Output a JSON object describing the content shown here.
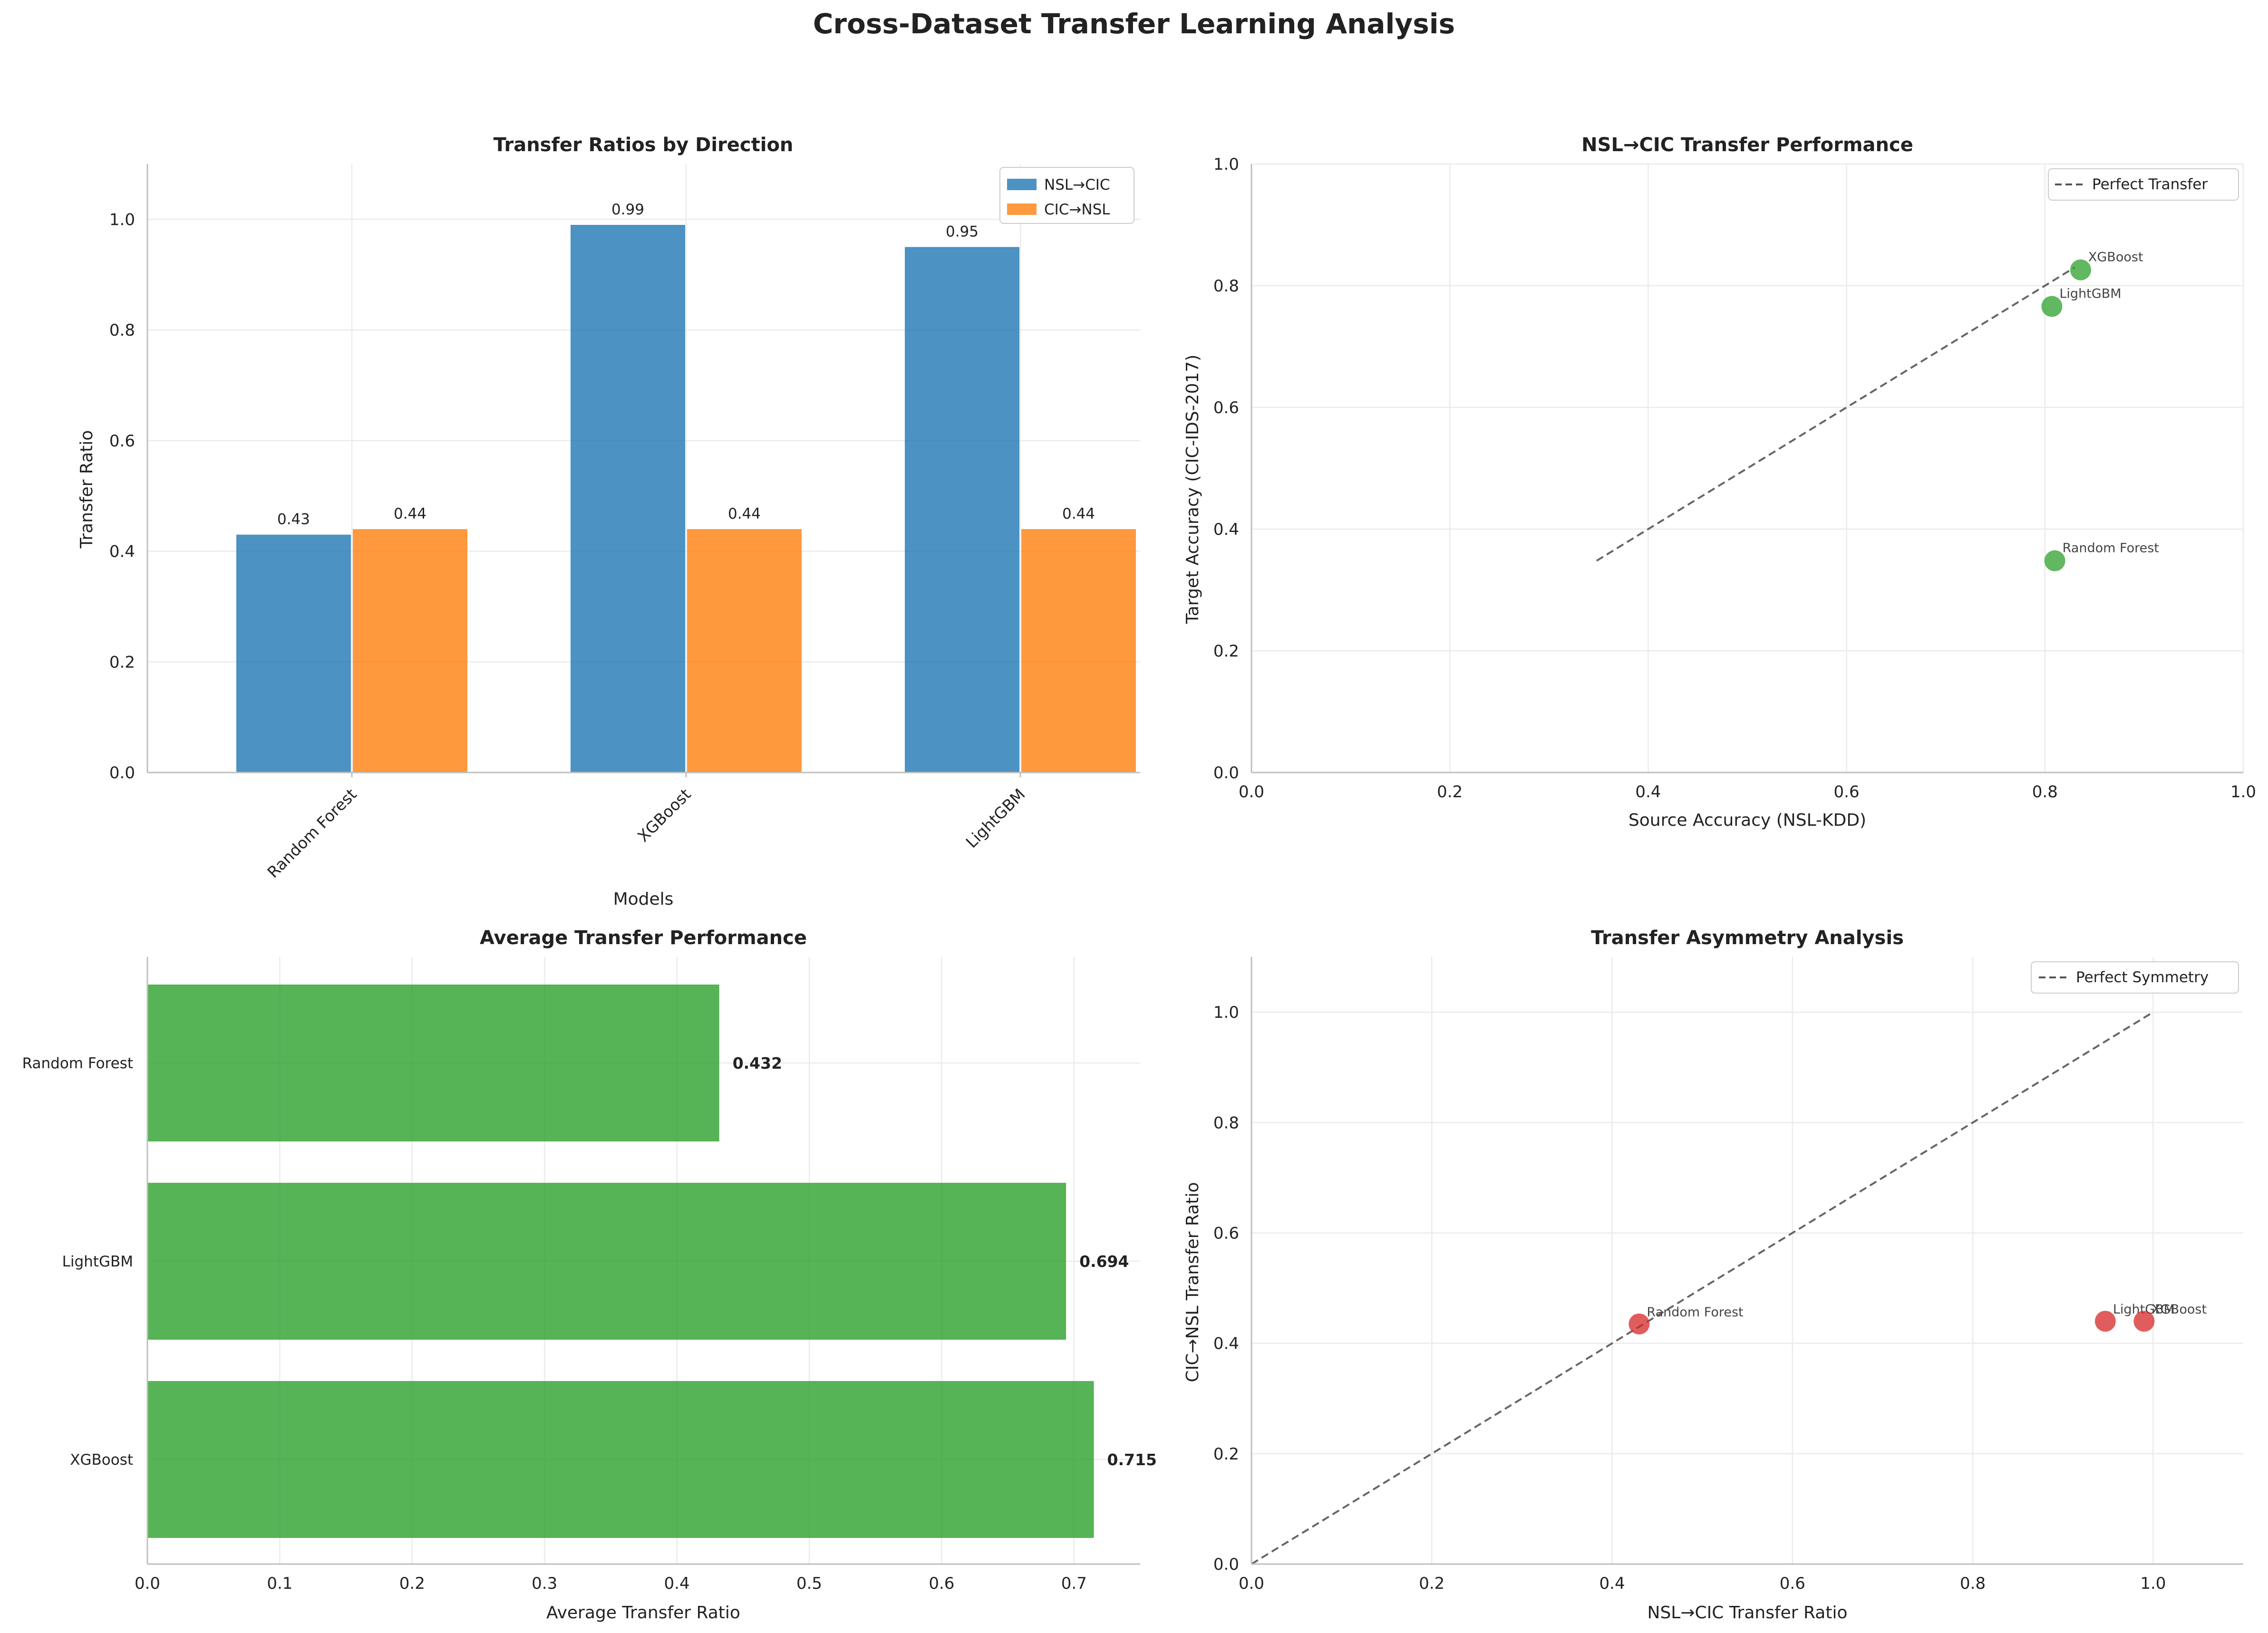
{
  "figure": {
    "title": "Cross-Dataset Transfer Learning Analysis"
  },
  "colors": {
    "nsl_to_cic": "#1f77b4",
    "cic_to_nsl": "#ff7f0e",
    "green": "#2ca02c",
    "red": "#d62728",
    "reference_line": "#555555"
  },
  "chart_data": [
    {
      "id": "transfer_ratios",
      "type": "bar",
      "title": "Transfer Ratios by Direction",
      "xlabel": "Models",
      "ylabel": "Transfer Ratio",
      "categories": [
        "Random Forest",
        "XGBoost",
        "LightGBM"
      ],
      "series": [
        {
          "name": "NSL→CIC",
          "color": "#1f77b4",
          "values": [
            0.43,
            0.99,
            0.95
          ]
        },
        {
          "name": "CIC→NSL",
          "color": "#ff7f0e",
          "values": [
            0.44,
            0.44,
            0.44
          ]
        }
      ],
      "bar_labels": [
        [
          "0.43",
          "0.99",
          "0.95"
        ],
        [
          "0.44",
          "0.44",
          "0.44"
        ]
      ],
      "ylim": [
        0,
        1.1
      ],
      "yticks": [
        "0.0",
        "0.2",
        "0.4",
        "0.6",
        "0.8",
        "1.0"
      ],
      "grid": true,
      "legend": "top-right"
    },
    {
      "id": "nsl_cic_performance",
      "type": "scatter",
      "title": "NSL→CIC Transfer Performance",
      "xlabel": "Source Accuracy (NSL-KDD)",
      "ylabel": "Target Accuracy (CIC-IDS-2017)",
      "points": [
        {
          "label": "Random Forest",
          "x": 0.81,
          "y": 0.348
        },
        {
          "label": "XGBoost",
          "x": 0.836,
          "y": 0.826
        },
        {
          "label": "LightGBM",
          "x": 0.807,
          "y": 0.766
        }
      ],
      "reference_line": {
        "name": "Perfect Transfer",
        "from": [
          0.348,
          0.348
        ],
        "to": [
          0.83,
          0.83
        ]
      },
      "xlim": [
        0,
        1
      ],
      "ylim": [
        0,
        1
      ],
      "xticks": [
        "0.0",
        "0.2",
        "0.4",
        "0.6",
        "0.8",
        "1.0"
      ],
      "yticks": [
        "0.0",
        "0.2",
        "0.4",
        "0.6",
        "0.8",
        "1.0"
      ],
      "grid": true,
      "legend": "top-right"
    },
    {
      "id": "average_transfer",
      "type": "bar",
      "orientation": "horizontal",
      "title": "Average Transfer Performance",
      "xlabel": "Average Transfer Ratio",
      "categories": [
        "Random Forest",
        "LightGBM",
        "XGBoost"
      ],
      "values": [
        0.432,
        0.694,
        0.715
      ],
      "bar_labels": [
        "0.432",
        "0.694",
        "0.715"
      ],
      "xlim": [
        0,
        0.75
      ],
      "xticks": [
        "0.0",
        "0.1",
        "0.2",
        "0.3",
        "0.4",
        "0.5",
        "0.6",
        "0.7"
      ],
      "grid": true
    },
    {
      "id": "asymmetry",
      "type": "scatter",
      "title": "Transfer Asymmetry Analysis",
      "xlabel": "NSL→CIC Transfer Ratio",
      "ylabel": "CIC→NSL Transfer Ratio",
      "points": [
        {
          "label": "Random Forest",
          "x": 0.43,
          "y": 0.435
        },
        {
          "label": "LightGBM",
          "x": 0.947,
          "y": 0.44
        },
        {
          "label": "XGBoost",
          "x": 0.99,
          "y": 0.44
        }
      ],
      "reference_line": {
        "name": "Perfect Symmetry",
        "from": [
          0,
          0
        ],
        "to": [
          1,
          1
        ]
      },
      "xlim": [
        0,
        1.1
      ],
      "ylim": [
        0,
        1.1
      ],
      "xticks": [
        "0.0",
        "0.2",
        "0.4",
        "0.6",
        "0.8",
        "1.0"
      ],
      "yticks": [
        "0.0",
        "0.2",
        "0.4",
        "0.6",
        "0.8",
        "1.0"
      ],
      "grid": true,
      "legend": "top-right"
    }
  ]
}
